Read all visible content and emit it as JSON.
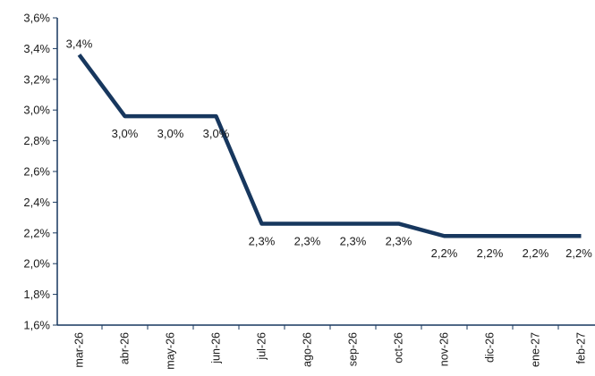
{
  "chart_data": {
    "type": "line",
    "title": "",
    "xlabel": "",
    "ylabel": "",
    "categories": [
      "mar-26",
      "abr-26",
      "may-26",
      "jun-26",
      "jul-26",
      "ago-26",
      "sep-26",
      "oct-26",
      "nov-26",
      "dic-26",
      "ene-27",
      "feb-27"
    ],
    "values": [
      3.36,
      2.96,
      2.96,
      2.96,
      2.26,
      2.26,
      2.26,
      2.26,
      2.18,
      2.18,
      2.18,
      2.18
    ],
    "data_labels": [
      "3,4%",
      "3,0%",
      "3,0%",
      "3,0%",
      "2,3%",
      "2,3%",
      "2,3%",
      "2,3%",
      "2,2%",
      "2,2%",
      "2,2%",
      "2,2%"
    ],
    "ylim": [
      1.6,
      3.6
    ],
    "yticks": [
      1.6,
      1.8,
      2.0,
      2.2,
      2.4,
      2.6,
      2.8,
      3.0,
      3.2,
      3.4,
      3.6
    ],
    "ytick_labels": [
      "1,6%",
      "1,8%",
      "2,0%",
      "2,2%",
      "2,4%",
      "2,6%",
      "2,8%",
      "3,0%",
      "3,2%",
      "3,4%",
      "3,6%"
    ],
    "grid": false,
    "line_color": "#17375e"
  }
}
